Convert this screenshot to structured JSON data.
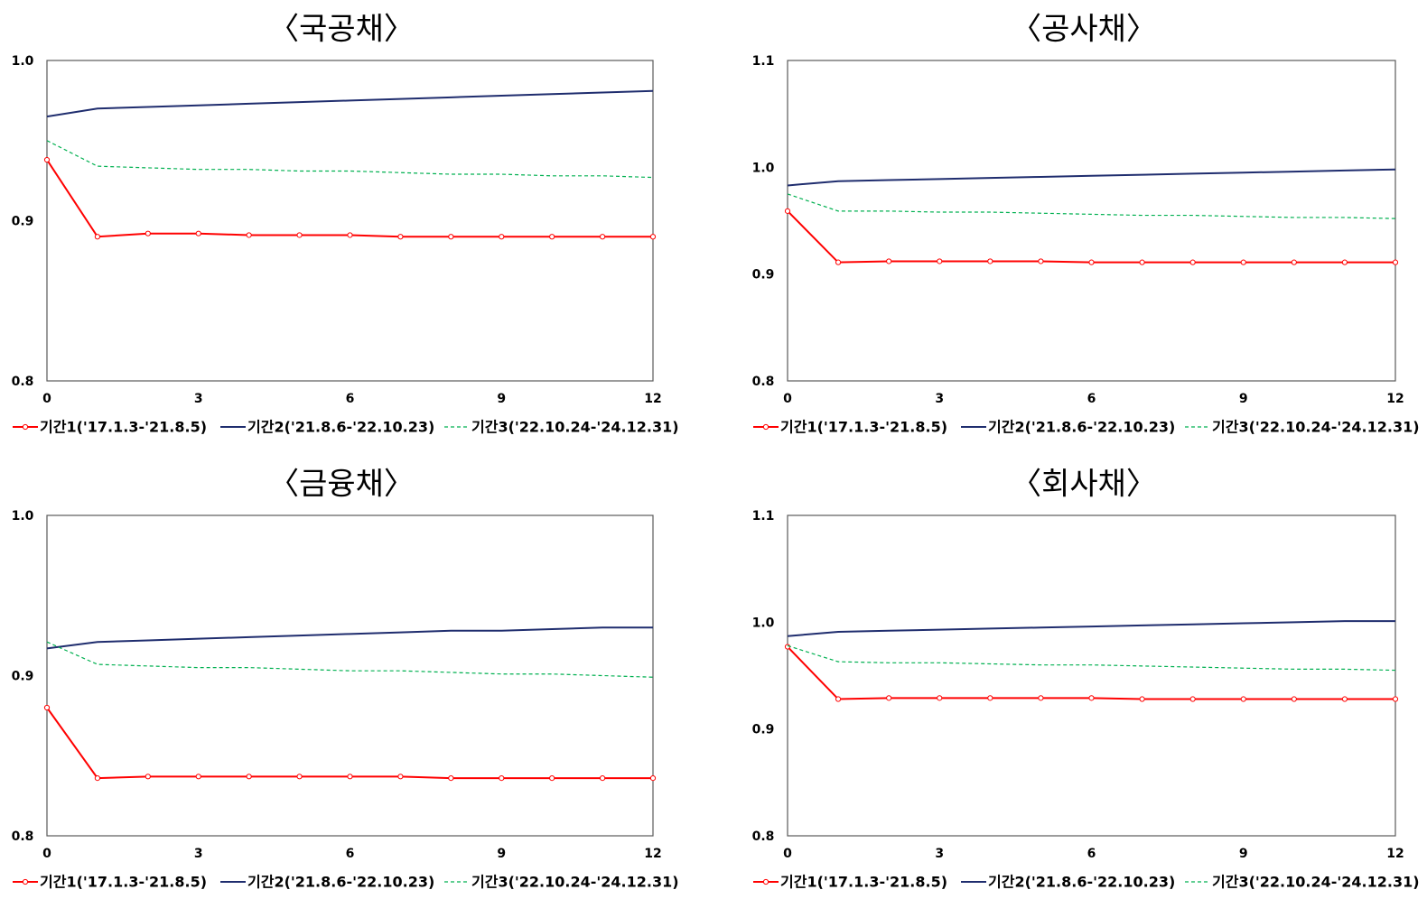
{
  "chart_data": [
    {
      "type": "line",
      "title": "〈국공채〉",
      "x": [
        0,
        1,
        2,
        3,
        4,
        5,
        6,
        7,
        8,
        9,
        10,
        11,
        12
      ],
      "xticks": [
        "0",
        "3",
        "6",
        "9",
        "12"
      ],
      "xtick_values": [
        0,
        3,
        6,
        9,
        12
      ],
      "yticks": [
        "0.8",
        "0.9",
        "1.0"
      ],
      "ytick_values": [
        0.8,
        0.9,
        1.0
      ],
      "ylim": [
        0.8,
        1.0
      ],
      "series": [
        {
          "name": "기간1('17.1.3-'21.8.5)",
          "color": "#ff0000",
          "style": "solid-markers",
          "values": [
            0.938,
            0.89,
            0.892,
            0.892,
            0.891,
            0.891,
            0.891,
            0.89,
            0.89,
            0.89,
            0.89,
            0.89,
            0.89
          ]
        },
        {
          "name": "기간2('21.8.6-'22.10.23)",
          "color": "#1f2d6e",
          "style": "solid",
          "values": [
            0.965,
            0.97,
            0.971,
            0.972,
            0.973,
            0.974,
            0.975,
            0.976,
            0.977,
            0.978,
            0.979,
            0.98,
            0.981
          ]
        },
        {
          "name": "기간3('22.10.24-'24.12.31)",
          "color": "#00b050",
          "style": "dashed",
          "values": [
            0.95,
            0.934,
            0.933,
            0.932,
            0.932,
            0.931,
            0.931,
            0.93,
            0.929,
            0.929,
            0.928,
            0.928,
            0.927
          ]
        }
      ]
    },
    {
      "type": "line",
      "title": "〈공사채〉",
      "x": [
        0,
        1,
        2,
        3,
        4,
        5,
        6,
        7,
        8,
        9,
        10,
        11,
        12
      ],
      "xticks": [
        "0",
        "3",
        "6",
        "9",
        "12"
      ],
      "xtick_values": [
        0,
        3,
        6,
        9,
        12
      ],
      "yticks": [
        "0.8",
        "0.9",
        "1.0",
        "1.1"
      ],
      "ytick_values": [
        0.8,
        0.9,
        1.0,
        1.1
      ],
      "ylim": [
        0.8,
        1.1
      ],
      "series": [
        {
          "name": "기간1('17.1.3-'21.8.5)",
          "color": "#ff0000",
          "style": "solid-markers",
          "values": [
            0.959,
            0.911,
            0.912,
            0.912,
            0.912,
            0.912,
            0.911,
            0.911,
            0.911,
            0.911,
            0.911,
            0.911,
            0.911
          ]
        },
        {
          "name": "기간2('21.8.6-'22.10.23)",
          "color": "#1f2d6e",
          "style": "solid",
          "values": [
            0.983,
            0.987,
            0.988,
            0.989,
            0.99,
            0.991,
            0.992,
            0.993,
            0.994,
            0.995,
            0.996,
            0.997,
            0.998
          ]
        },
        {
          "name": "기간3('22.10.24-'24.12.31)",
          "color": "#00b050",
          "style": "dashed",
          "values": [
            0.975,
            0.959,
            0.959,
            0.958,
            0.958,
            0.957,
            0.956,
            0.955,
            0.955,
            0.954,
            0.953,
            0.953,
            0.952
          ]
        }
      ]
    },
    {
      "type": "line",
      "title": "〈금융채〉",
      "x": [
        0,
        1,
        2,
        3,
        4,
        5,
        6,
        7,
        8,
        9,
        10,
        11,
        12
      ],
      "xticks": [
        "0",
        "3",
        "6",
        "9",
        "12"
      ],
      "xtick_values": [
        0,
        3,
        6,
        9,
        12
      ],
      "yticks": [
        "0.8",
        "0.9",
        "1.0"
      ],
      "ytick_values": [
        0.8,
        0.9,
        1.0
      ],
      "ylim": [
        0.8,
        1.0
      ],
      "series": [
        {
          "name": "기간1('17.1.3-'21.8.5)",
          "color": "#ff0000",
          "style": "solid-markers",
          "values": [
            0.88,
            0.836,
            0.837,
            0.837,
            0.837,
            0.837,
            0.837,
            0.837,
            0.836,
            0.836,
            0.836,
            0.836,
            0.836
          ]
        },
        {
          "name": "기간2('21.8.6-'22.10.23)",
          "color": "#1f2d6e",
          "style": "solid",
          "values": [
            0.917,
            0.921,
            0.922,
            0.923,
            0.924,
            0.925,
            0.926,
            0.927,
            0.928,
            0.928,
            0.929,
            0.93,
            0.93
          ]
        },
        {
          "name": "기간3('22.10.24-'24.12.31)",
          "color": "#00b050",
          "style": "dashed",
          "values": [
            0.921,
            0.907,
            0.906,
            0.905,
            0.905,
            0.904,
            0.903,
            0.903,
            0.902,
            0.901,
            0.901,
            0.9,
            0.899
          ]
        }
      ]
    },
    {
      "type": "line",
      "title": "〈회사채〉",
      "x": [
        0,
        1,
        2,
        3,
        4,
        5,
        6,
        7,
        8,
        9,
        10,
        11,
        12
      ],
      "xticks": [
        "0",
        "3",
        "6",
        "9",
        "12"
      ],
      "xtick_values": [
        0,
        3,
        6,
        9,
        12
      ],
      "yticks": [
        "0.8",
        "0.9",
        "1.0",
        "1.1"
      ],
      "ytick_values": [
        0.8,
        0.9,
        1.0,
        1.1
      ],
      "ylim": [
        0.8,
        1.1
      ],
      "series": [
        {
          "name": "기간1('17.1.3-'21.8.5)",
          "color": "#ff0000",
          "style": "solid-markers",
          "values": [
            0.977,
            0.928,
            0.929,
            0.929,
            0.929,
            0.929,
            0.929,
            0.928,
            0.928,
            0.928,
            0.928,
            0.928,
            0.928
          ]
        },
        {
          "name": "기간2('21.8.6-'22.10.23)",
          "color": "#1f2d6e",
          "style": "solid",
          "values": [
            0.987,
            0.991,
            0.992,
            0.993,
            0.994,
            0.995,
            0.996,
            0.997,
            0.998,
            0.999,
            1.0,
            1.001,
            1.001
          ]
        },
        {
          "name": "기간3('22.10.24-'24.12.31)",
          "color": "#00b050",
          "style": "dashed",
          "values": [
            0.978,
            0.963,
            0.962,
            0.962,
            0.961,
            0.96,
            0.96,
            0.959,
            0.958,
            0.957,
            0.956,
            0.956,
            0.955
          ]
        }
      ]
    }
  ]
}
